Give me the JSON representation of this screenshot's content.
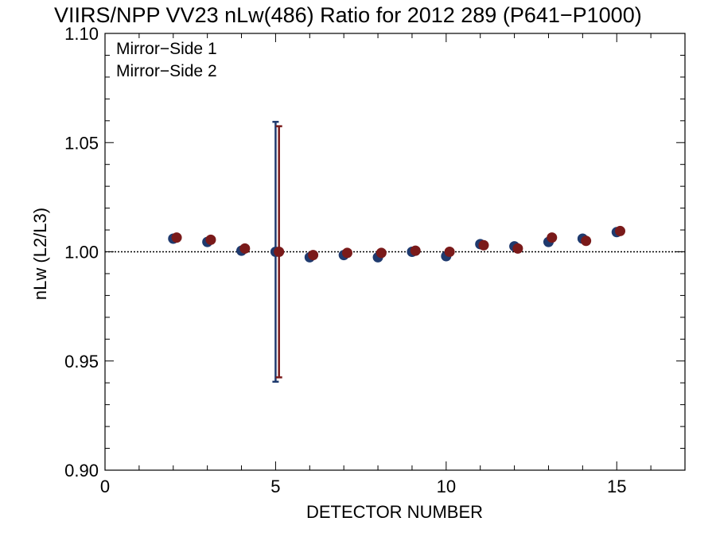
{
  "chart_data": {
    "type": "scatter",
    "title": "VIIRS/NPP VV23 nLw(486) Ratio for 2012 289 (P641−P1000)",
    "xlabel": "DETECTOR NUMBER",
    "ylabel": "nLw (L2/L3)",
    "xlim": [
      0,
      17
    ],
    "ylim": [
      0.9,
      1.1
    ],
    "x_ticks": [
      0,
      5,
      10,
      15
    ],
    "x_tick_labels": [
      "0",
      "5",
      "10",
      "15"
    ],
    "y_ticks": [
      0.9,
      0.95,
      1.0,
      1.05,
      1.1
    ],
    "y_tick_labels": [
      "0.90",
      "0.95",
      "1.00",
      "1.05",
      "1.10"
    ],
    "reference_line": 1.0,
    "legend_position": "top-left",
    "series": [
      {
        "name": "Mirror−Side 1",
        "color": "#1f3a6e",
        "x": [
          2,
          3,
          4,
          5,
          6,
          7,
          8,
          9,
          10,
          11,
          12,
          13,
          14,
          15
        ],
        "y": [
          1.006,
          1.0045,
          1.0005,
          1.0,
          0.9975,
          0.9985,
          0.9975,
          1.0,
          0.998,
          1.0035,
          1.0025,
          1.0045,
          1.006,
          1.009
        ],
        "error_bars": [
          {
            "x": 5,
            "low": 0.9405,
            "high": 1.0595
          }
        ]
      },
      {
        "name": "Mirror−Side 2",
        "color": "#7a1a1a",
        "x": [
          2.1,
          3.1,
          4.1,
          5.1,
          6.1,
          7.1,
          8.1,
          9.1,
          10.1,
          11.1,
          12.1,
          13.1,
          14.1,
          15.1
        ],
        "y": [
          1.0065,
          1.0055,
          1.0015,
          1.0,
          0.9985,
          0.9995,
          0.9995,
          1.0005,
          1.0,
          1.003,
          1.0015,
          1.0065,
          1.005,
          1.0095
        ],
        "error_bars": [
          {
            "x": 5.1,
            "low": 0.9425,
            "high": 1.0575
          }
        ]
      }
    ]
  }
}
